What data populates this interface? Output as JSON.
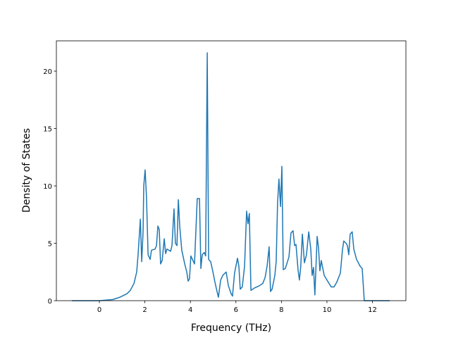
{
  "chart_data": {
    "type": "line",
    "x_label": "Frequency (THz)",
    "y_label": "Density of States",
    "xlim": [
      -1.89,
      13.47
    ],
    "ylim": [
      0,
      22.64
    ],
    "xticks": [
      0,
      2,
      4,
      6,
      8,
      10,
      12
    ],
    "yticks": [
      0,
      5,
      10,
      15,
      20
    ],
    "grid": false,
    "series": [
      {
        "color": "#1f77b4",
        "x": [
          -1.21,
          0,
          0.59,
          0.9,
          1.21,
          1.36,
          1.52,
          1.64,
          1.7,
          1.8,
          1.86,
          1.92,
          1.95,
          2.01,
          2.07,
          2.14,
          2.23,
          2.29,
          2.45,
          2.51,
          2.57,
          2.63,
          2.69,
          2.76,
          2.85,
          2.91,
          2.97,
          3.13,
          3.19,
          3.28,
          3.34,
          3.41,
          3.47,
          3.53,
          3.62,
          3.75,
          3.84,
          3.9,
          3.96,
          4.02,
          4.18,
          4.3,
          4.4,
          4.46,
          4.52,
          4.61,
          4.67,
          4.74,
          4.8,
          4.89,
          4.98,
          5.08,
          5.17,
          5.23,
          5.33,
          5.42,
          5.57,
          5.67,
          5.79,
          5.85,
          5.94,
          6.07,
          6.13,
          6.19,
          6.28,
          6.38,
          6.47,
          6.53,
          6.59,
          6.66,
          6.81,
          7.03,
          7.18,
          7.28,
          7.37,
          7.46,
          7.52,
          7.59,
          7.71,
          7.77,
          7.83,
          7.89,
          7.96,
          8.02,
          8.08,
          8.17,
          8.33,
          8.42,
          8.51,
          8.58,
          8.64,
          8.73,
          8.79,
          8.85,
          8.92,
          9.01,
          9.1,
          9.2,
          9.29,
          9.35,
          9.41,
          9.47,
          9.57,
          9.63,
          9.69,
          9.75,
          9.88,
          10.03,
          10.19,
          10.31,
          10.43,
          10.59,
          10.68,
          10.74,
          10.84,
          10.9,
          10.96,
          11.02,
          11.11,
          11.18,
          11.3,
          11.46,
          11.55,
          11.64,
          12.76
        ],
        "values": [
          0,
          0,
          0.1,
          0.3,
          0.6,
          0.9,
          1.5,
          2.5,
          4,
          7.1,
          3.4,
          6,
          10,
          11.4,
          9,
          4,
          3.6,
          4.4,
          4.5,
          4.8,
          6.5,
          6.2,
          3.2,
          3.5,
          5.4,
          4.1,
          4.5,
          4.3,
          4.8,
          8.0,
          5.0,
          4.8,
          8.8,
          6.5,
          4.4,
          3.2,
          2.5,
          1.7,
          1.9,
          3.9,
          3.2,
          8.9,
          8.9,
          2.8,
          4.0,
          4.2,
          3.9,
          21.6,
          3.6,
          3.4,
          2.6,
          1.6,
          0.8,
          0.3,
          1.8,
          2.2,
          2.5,
          1.3,
          0.6,
          0.4,
          2.4,
          3.7,
          3.0,
          1.0,
          1.2,
          3.0,
          7.8,
          6.7,
          7.6,
          0.9,
          1.1,
          1.3,
          1.5,
          2.0,
          3.0,
          4.7,
          0.8,
          1.0,
          2.2,
          3.4,
          8.5,
          10.6,
          8.2,
          11.7,
          2.7,
          2.8,
          3.8,
          5.9,
          6.1,
          4.8,
          4.9,
          2.7,
          1.8,
          3.0,
          5.8,
          3.3,
          4.0,
          6.0,
          4.5,
          2.2,
          2.9,
          0.5,
          5.6,
          4.6,
          2.6,
          3.5,
          2.2,
          1.7,
          1.2,
          1.2,
          1.6,
          2.4,
          4.4,
          5.2,
          5.0,
          4.8,
          4.0,
          5.8,
          6.0,
          4.5,
          3.6,
          3.0,
          2.8,
          0,
          0
        ]
      }
    ]
  }
}
